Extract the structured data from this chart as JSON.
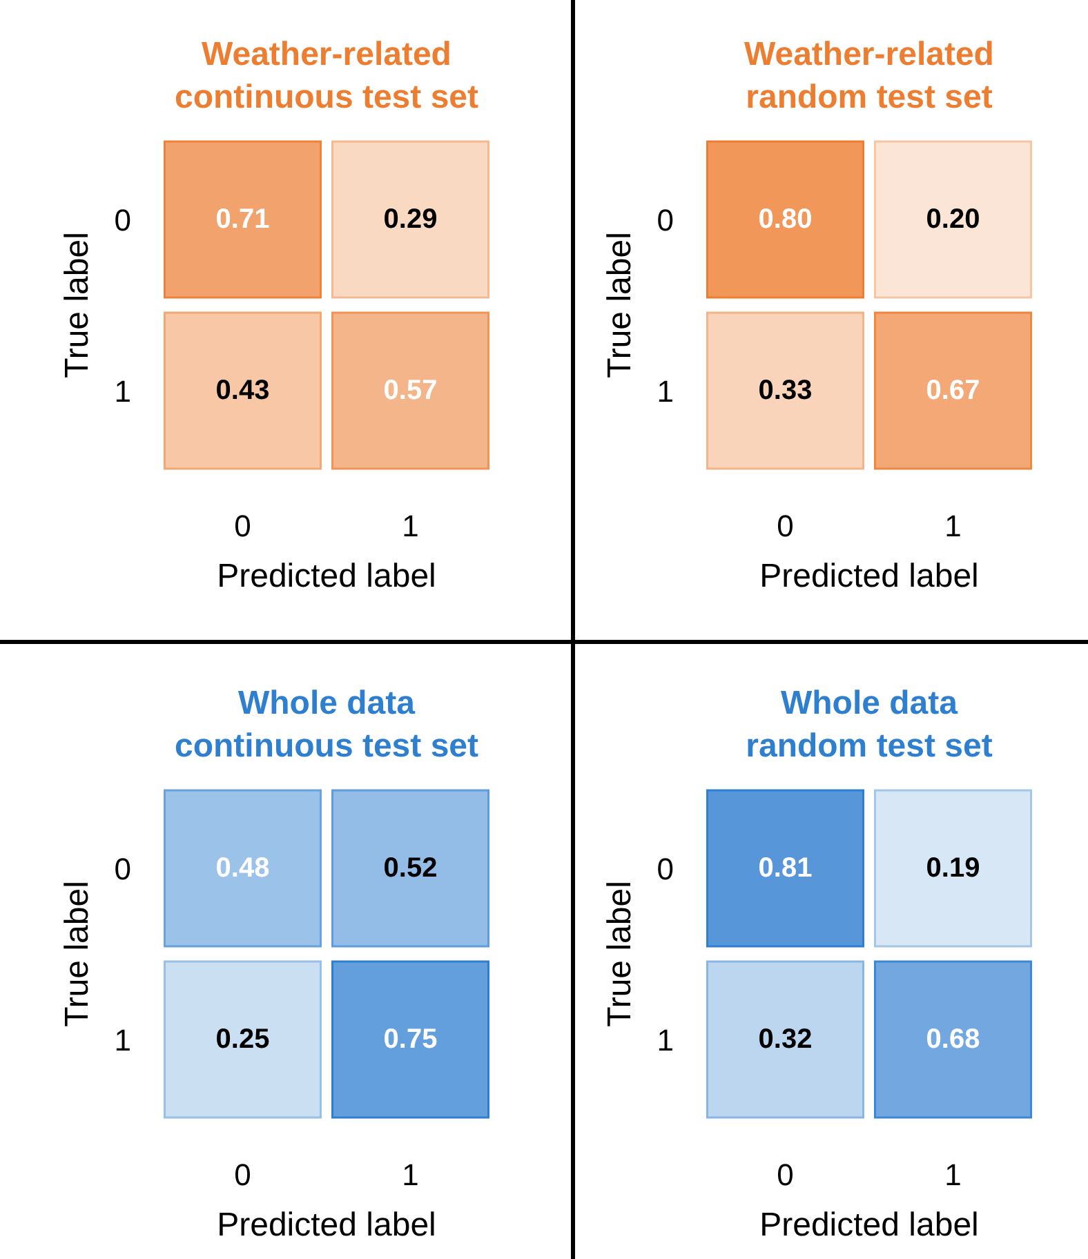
{
  "chart_data": [
    {
      "type": "heatmap",
      "title": "Weather-related\ncontinuous test set",
      "categories": [
        "0",
        "1"
      ],
      "y_categories": [
        "0",
        "1"
      ],
      "cells": [
        [
          0.71,
          0.29
        ],
        [
          0.43,
          0.57
        ]
      ],
      "xlabel": "Predicted label",
      "ylabel": "True label",
      "color": "#ed7d31",
      "data_labels": true
    },
    {
      "type": "heatmap",
      "title": "Weather-related\nrandom test set",
      "categories": [
        "0",
        "1"
      ],
      "y_categories": [
        "0",
        "1"
      ],
      "cells": [
        [
          0.8,
          0.2
        ],
        [
          0.33,
          0.67
        ]
      ],
      "cell_labels": [
        [
          "0.80",
          "0.20"
        ],
        [
          "0.33",
          "0.67"
        ]
      ],
      "xlabel": "Predicted label",
      "ylabel": "True label",
      "color": "#ed7d31",
      "data_labels": true
    },
    {
      "type": "heatmap",
      "title": "Whole data\ncontinuous test set",
      "categories": [
        "0",
        "1"
      ],
      "y_categories": [
        "0",
        "1"
      ],
      "cells": [
        [
          0.48,
          0.52
        ],
        [
          0.25,
          0.75
        ]
      ],
      "xlabel": "Predicted label",
      "ylabel": "True label",
      "color": "#2f7fd0",
      "data_labels": true
    },
    {
      "type": "heatmap",
      "title": "Whole data\nrandom test set",
      "categories": [
        "0",
        "1"
      ],
      "y_categories": [
        "0",
        "1"
      ],
      "cells": [
        [
          0.81,
          0.19
        ],
        [
          0.32,
          0.68
        ]
      ],
      "xlabel": "Predicted label",
      "ylabel": "True label",
      "color": "#2f7fd0",
      "data_labels": true
    }
  ]
}
